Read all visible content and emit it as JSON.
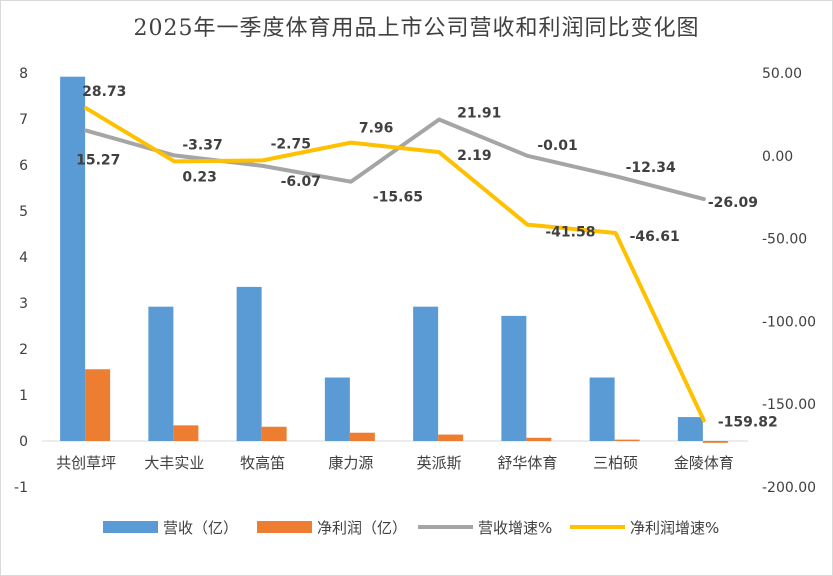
{
  "chart_data": {
    "type": "bar",
    "title": "2025年一季度体育用品上市公司营收和利润同比变化图",
    "categories": [
      "共创草坪",
      "大丰实业",
      "牧高笛",
      "康力源",
      "英派斯",
      "舒华体育",
      "三柏硕",
      "金陵体育"
    ],
    "y_left": {
      "range": [
        -1,
        8
      ],
      "ticks": [
        "-1",
        "0",
        "1",
        "2",
        "3",
        "4",
        "5",
        "6",
        "7",
        "8"
      ]
    },
    "y_right": {
      "range": [
        -200,
        50
      ],
      "ticks": [
        "-200.00",
        "-150.00",
        "-100.00",
        "-50.00",
        "0.00",
        "50.00"
      ]
    },
    "grid": false,
    "legend_position": "bottom",
    "series": [
      {
        "name": "营收（亿）",
        "type": "bar",
        "axis": "left",
        "color": "#5B9BD5",
        "values": [
          7.92,
          2.92,
          3.35,
          1.38,
          2.92,
          2.72,
          1.38,
          0.52
        ]
      },
      {
        "name": "净利润（亿）",
        "type": "bar",
        "axis": "left",
        "color": "#ED7D31",
        "values": [
          1.56,
          0.34,
          0.31,
          0.18,
          0.14,
          0.07,
          0.03,
          -0.04
        ]
      },
      {
        "name": "营收增速%",
        "type": "line",
        "axis": "right",
        "color": "#A5A5A5",
        "values": [
          15.27,
          0.23,
          -6.07,
          -15.65,
          21.91,
          -0.01,
          -12.34,
          -26.09
        ],
        "labels": [
          "15.27",
          "0.23",
          "-6.07",
          "-15.65",
          "21.91",
          "-0.01",
          "-12.34",
          "-26.09"
        ]
      },
      {
        "name": "净利润增速%",
        "type": "line",
        "axis": "right",
        "color": "#FFC000",
        "values": [
          28.73,
          -3.37,
          -2.75,
          7.96,
          2.19,
          -41.58,
          -46.61,
          -159.82
        ],
        "labels": [
          "28.73",
          "-3.37",
          "-2.75",
          "7.96",
          "2.19",
          "-41.58",
          "-46.61",
          "-159.82"
        ]
      }
    ]
  }
}
